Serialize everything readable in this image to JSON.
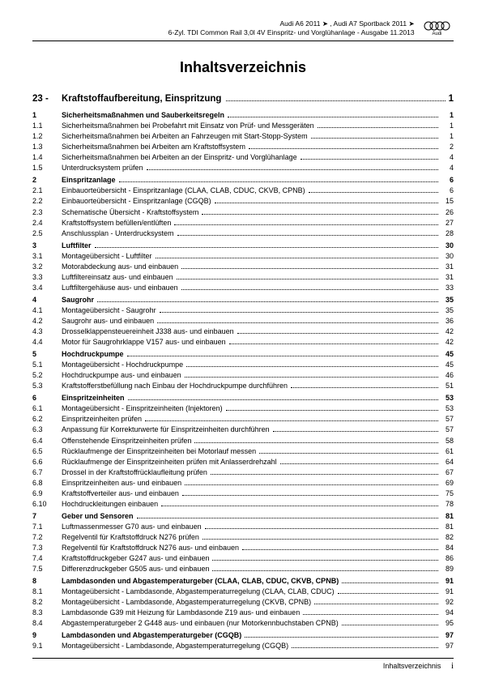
{
  "header": {
    "line1": "Audi A6 2011 ➤ , Audi A7 Sportback 2011 ➤",
    "line2": "6-Zyl. TDI Common Rail 3,0l 4V Einspritz- und Vorglühanlage - Ausgabe 11.2013",
    "brand": "Audi"
  },
  "title": "Inhaltsverzeichnis",
  "chapter": {
    "num": "23 -",
    "label": "Kraftstoffaufbereitung, Einspritzung",
    "page": "1"
  },
  "toc": [
    {
      "num": "1",
      "label": "Sicherheitsmaßnahmen und Sauberkeitsregeln",
      "page": "1",
      "section": true
    },
    {
      "num": "1.1",
      "label": "Sicherheitsmaßnahmen bei Probefahrt mit Einsatz von Prüf- und Messgeräten",
      "page": "1"
    },
    {
      "num": "1.2",
      "label": "Sicherheitsmaßnahmen bei Arbeiten an Fahrzeugen mit Start-Stopp-System",
      "page": "1"
    },
    {
      "num": "1.3",
      "label": "Sicherheitsmaßnahmen bei Arbeiten am Kraftstoffsystem",
      "page": "2"
    },
    {
      "num": "1.4",
      "label": "Sicherheitsmaßnahmen bei Arbeiten an der Einspritz- und Vorglühanlage",
      "page": "4"
    },
    {
      "num": "1.5",
      "label": "Unterdrucksystem prüfen",
      "page": "4"
    },
    {
      "num": "2",
      "label": "Einspritzanlage",
      "page": "6",
      "section": true
    },
    {
      "num": "2.1",
      "label": "Einbauorteübersicht - Einspritzanlage (CLAA, CLAB, CDUC, CKVB, CPNB)",
      "page": "6"
    },
    {
      "num": "2.2",
      "label": "Einbauorteübersicht - Einspritzanlage (CGQB)",
      "page": "15"
    },
    {
      "num": "2.3",
      "label": "Schematische Übersicht - Kraftstoffsystem",
      "page": "26"
    },
    {
      "num": "2.4",
      "label": "Kraftstoffsystem befüllen/entlüften",
      "page": "27"
    },
    {
      "num": "2.5",
      "label": "Anschlussplan - Unterdrucksystem",
      "page": "28"
    },
    {
      "num": "3",
      "label": "Luftfilter",
      "page": "30",
      "section": true
    },
    {
      "num": "3.1",
      "label": "Montageübersicht - Luftfilter",
      "page": "30"
    },
    {
      "num": "3.2",
      "label": "Motorabdeckung aus- und einbauen",
      "page": "31"
    },
    {
      "num": "3.3",
      "label": "Luftfiltereinsatz aus- und einbauen",
      "page": "31"
    },
    {
      "num": "3.4",
      "label": "Luftfiltergehäuse aus- und einbauen",
      "page": "33"
    },
    {
      "num": "4",
      "label": "Saugrohr",
      "page": "35",
      "section": true
    },
    {
      "num": "4.1",
      "label": "Montageübersicht - Saugrohr",
      "page": "35"
    },
    {
      "num": "4.2",
      "label": "Saugrohr aus- und einbauen",
      "page": "36"
    },
    {
      "num": "4.3",
      "label": "Drosselklappensteuereinheit J338 aus- und einbauen",
      "page": "42"
    },
    {
      "num": "4.4",
      "label": "Motor für Saugrohrklappe V157 aus- und einbauen",
      "page": "42"
    },
    {
      "num": "5",
      "label": "Hochdruckpumpe",
      "page": "45",
      "section": true
    },
    {
      "num": "5.1",
      "label": "Montageübersicht - Hochdruckpumpe",
      "page": "45"
    },
    {
      "num": "5.2",
      "label": "Hochdruckpumpe aus- und einbauen",
      "page": "46"
    },
    {
      "num": "5.3",
      "label": "Kraftstofferstbefüllung nach Einbau der Hochdruckpumpe durchführen",
      "page": "51"
    },
    {
      "num": "6",
      "label": "Einspritzeinheiten",
      "page": "53",
      "section": true
    },
    {
      "num": "6.1",
      "label": "Montageübersicht - Einspritzeinheiten (Injektoren)",
      "page": "53"
    },
    {
      "num": "6.2",
      "label": "Einspritzeinheiten prüfen",
      "page": "57"
    },
    {
      "num": "6.3",
      "label": "Anpassung für Korrekturwerte für Einspritzeinheiten durchführen",
      "page": "57"
    },
    {
      "num": "6.4",
      "label": "Offenstehende Einspritzeinheiten prüfen",
      "page": "58"
    },
    {
      "num": "6.5",
      "label": "Rücklaufmenge der Einspritzeinheiten bei Motorlauf messen",
      "page": "61"
    },
    {
      "num": "6.6",
      "label": "Rücklaufmenge der Einspritzeinheiten prüfen mit Anlasserdrehzahl",
      "page": "64"
    },
    {
      "num": "6.7",
      "label": "Drossel in der Kraftstoffrücklaufleitung prüfen",
      "page": "67"
    },
    {
      "num": "6.8",
      "label": "Einspritzeinheiten aus- und einbauen",
      "page": "69"
    },
    {
      "num": "6.9",
      "label": "Kraftstoffverteiler aus- und einbauen",
      "page": "75"
    },
    {
      "num": "6.10",
      "label": "Hochdruckleitungen einbauen",
      "page": "78"
    },
    {
      "num": "7",
      "label": "Geber und Sensoren",
      "page": "81",
      "section": true
    },
    {
      "num": "7.1",
      "label": "Luftmassenmesser G70 aus- und einbauen",
      "page": "81"
    },
    {
      "num": "7.2",
      "label": "Regelventil für Kraftstoffdruck N276 prüfen",
      "page": "82"
    },
    {
      "num": "7.3",
      "label": "Regelventil für Kraftstoffdruck N276 aus- und einbauen",
      "page": "84"
    },
    {
      "num": "7.4",
      "label": "Kraftstoffdruckgeber G247 aus- und einbauen",
      "page": "86"
    },
    {
      "num": "7.5",
      "label": "Differenzdruckgeber G505 aus- und einbauen",
      "page": "89"
    },
    {
      "num": "8",
      "label": "Lambdasonden und Abgastemperaturgeber (CLAA, CLAB, CDUC, CKVB, CPNB)",
      "page": "91",
      "section": true
    },
    {
      "num": "8.1",
      "label": "Montageübersicht - Lambdasonde, Abgastemperaturregelung (CLAA, CLAB, CDUC)",
      "page": "91"
    },
    {
      "num": "8.2",
      "label": "Montageübersicht - Lambdasonde, Abgastemperaturregelung (CKVB, CPNB)",
      "page": "92"
    },
    {
      "num": "8.3",
      "label": "Lambdasonde G39 mit Heizung für Lambdasonde Z19 aus- und einbauen",
      "page": "94"
    },
    {
      "num": "8.4",
      "label": "Abgastemperaturgeber 2 G448 aus- und einbauen (nur Motorkennbuchstaben CPNB)",
      "page": "95"
    },
    {
      "num": "9",
      "label": "Lambdasonden und Abgastemperaturgeber (CGQB)",
      "page": "97",
      "section": true
    },
    {
      "num": "9.1",
      "label": "Montageübersicht - Lambdasonde, Abgastemperaturregelung (CGQB)",
      "page": "97"
    }
  ],
  "footer": {
    "label": "Inhaltsverzeichnis",
    "page": "i"
  }
}
